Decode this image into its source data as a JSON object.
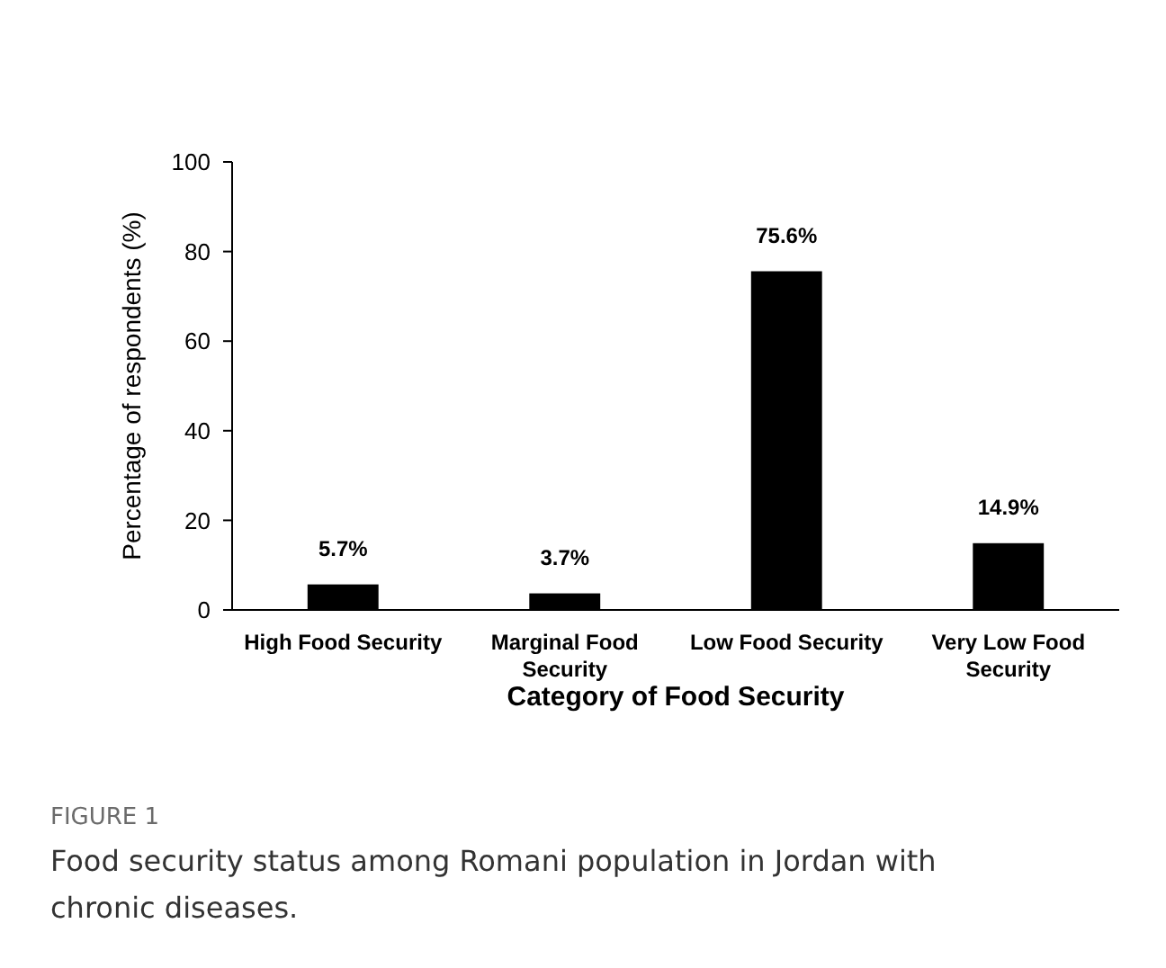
{
  "chart_data": {
    "type": "bar",
    "categories": [
      "High Food Security",
      "Marginal Food Security",
      "Low Food Security",
      "Very Low Food Security"
    ],
    "values": [
      5.7,
      3.7,
      75.6,
      14.9
    ],
    "value_labels": [
      "5.7%",
      "3.7%",
      "75.6%",
      "14.9%"
    ],
    "color": "#000000",
    "ylim": [
      0,
      100
    ],
    "yticks": [
      0,
      20,
      40,
      60,
      80,
      100
    ],
    "grid": false,
    "xlabel": "Category of Food Security",
    "ylabel": "Percentage of respondents (%)",
    "annotations": [
      "FIGURE 1",
      "Food security status among Romani population in Jordan with chronic diseases."
    ]
  }
}
